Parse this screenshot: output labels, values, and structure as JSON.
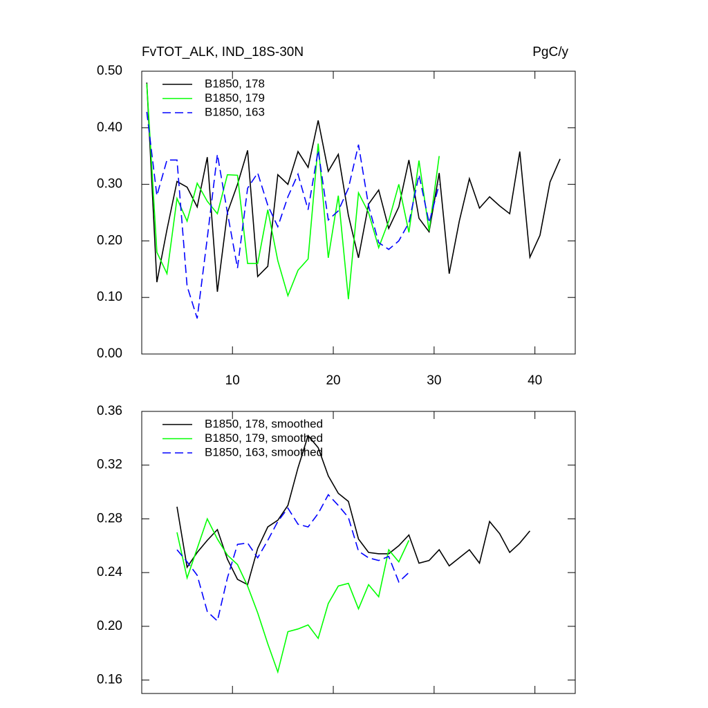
{
  "chart_data": [
    {
      "type": "line",
      "title": "FvTOT_ALK, IND_18S-30N",
      "subtitle": "PgC/y",
      "x": [
        1.5,
        2.5,
        3.5,
        4.5,
        5.5,
        6.5,
        7.5,
        8.5,
        9.5,
        10.5,
        11.5,
        12.5,
        13.5,
        14.5,
        15.5,
        16.5,
        17.5,
        18.5,
        19.5,
        20.5,
        21.5,
        22.5,
        23.5,
        24.5,
        25.5,
        26.5,
        27.5,
        28.5,
        29.5,
        30.5,
        31.5,
        32.5,
        33.5,
        34.5,
        35.5,
        36.5,
        37.5,
        38.5,
        39.5,
        40.5,
        41.5,
        42.5
      ],
      "series": [
        {
          "name": "B1850, 178",
          "color": "#000000",
          "dash": false,
          "values": [
            0.48,
            0.127,
            0.22,
            0.305,
            0.295,
            0.26,
            0.348,
            0.11,
            0.25,
            0.3,
            0.36,
            0.137,
            0.155,
            0.317,
            0.3,
            0.358,
            0.33,
            0.413,
            0.323,
            0.353,
            0.245,
            0.17,
            0.265,
            0.29,
            0.222,
            0.26,
            0.343,
            0.24,
            0.216,
            0.32,
            0.142,
            0.235,
            0.31,
            0.258,
            0.278,
            0.262,
            0.248,
            0.358,
            0.171,
            0.21,
            0.304,
            0.345
          ]
        },
        {
          "name": "B1850, 179",
          "color": "#00ff00",
          "dash": false,
          "values": [
            0.478,
            0.18,
            0.142,
            0.275,
            0.235,
            0.302,
            0.27,
            0.248,
            0.317,
            0.316,
            0.16,
            0.16,
            0.255,
            0.165,
            0.103,
            0.148,
            0.168,
            0.372,
            0.17,
            0.28,
            0.097,
            0.285,
            0.25,
            0.188,
            0.235,
            0.3,
            0.215,
            0.342,
            0.218,
            0.35,
            null,
            null,
            null,
            null,
            null,
            null,
            null,
            null,
            null,
            null,
            null,
            null
          ]
        },
        {
          "name": "B1850, 163",
          "color": "#0000ff",
          "dash": true,
          "values": [
            0.428,
            0.28,
            0.343,
            0.343,
            0.12,
            0.063,
            0.205,
            0.353,
            0.25,
            0.152,
            0.293,
            0.32,
            0.263,
            0.225,
            0.278,
            0.318,
            0.255,
            0.36,
            0.237,
            0.253,
            0.293,
            0.37,
            0.262,
            0.197,
            0.185,
            0.2,
            0.232,
            0.317,
            0.232,
            0.3,
            null,
            null,
            null,
            null,
            null,
            null,
            null,
            null,
            null,
            null,
            null,
            null
          ]
        }
      ],
      "xlim": [
        1,
        44
      ],
      "xticks": [
        10,
        20,
        30,
        40
      ],
      "show_xtick_labels": true,
      "ylim": [
        0,
        0.5
      ],
      "yticks": [
        {
          "value": 0,
          "label": "0.00"
        },
        {
          "value": 0.1,
          "label": "0.10"
        },
        {
          "value": 0.2,
          "label": "0.20"
        },
        {
          "value": 0.3,
          "label": "0.30"
        },
        {
          "value": 0.4,
          "label": "0.40"
        },
        {
          "value": 0.5,
          "label": "0.50"
        }
      ],
      "legend": "top-left"
    },
    {
      "type": "line",
      "x": [
        4.5,
        5.5,
        6.5,
        7.5,
        8.5,
        9.5,
        10.5,
        11.5,
        12.5,
        13.5,
        14.5,
        15.5,
        16.5,
        17.5,
        18.5,
        19.5,
        20.5,
        21.5,
        22.5,
        23.5,
        24.5,
        25.5,
        26.5,
        27.5,
        28.5,
        29.5,
        30.5,
        31.5,
        32.5,
        33.5,
        34.5,
        35.5,
        36.5,
        37.5,
        38.5,
        39.5
      ],
      "series": [
        {
          "name": "B1850, 178, smoothed",
          "color": "#000000",
          "dash": false,
          "values": [
            0.289,
            0.244,
            0.255,
            0.264,
            0.272,
            0.25,
            0.235,
            0.231,
            0.258,
            0.274,
            0.279,
            0.29,
            0.318,
            0.342,
            0.333,
            0.312,
            0.299,
            0.293,
            0.265,
            0.255,
            0.254,
            0.254,
            0.26,
            0.268,
            0.247,
            0.249,
            0.257,
            0.245,
            0.251,
            0.257,
            0.247,
            0.278,
            0.269,
            0.255,
            0.262,
            0.271
          ]
        },
        {
          "name": "B1850, 179, smoothed",
          "color": "#00ff00",
          "dash": false,
          "values": [
            0.27,
            0.236,
            0.258,
            0.28,
            0.265,
            0.253,
            0.246,
            0.23,
            0.21,
            0.187,
            0.166,
            0.196,
            0.198,
            0.201,
            0.191,
            0.217,
            0.23,
            0.232,
            0.213,
            0.231,
            0.222,
            0.257,
            0.248,
            0.264,
            null,
            null,
            null,
            null,
            null,
            null,
            null,
            null,
            null,
            null,
            null,
            null
          ]
        },
        {
          "name": "B1850, 163, smoothed",
          "color": "#0000ff",
          "dash": true,
          "values": [
            0.257,
            0.248,
            0.238,
            0.211,
            0.204,
            0.236,
            0.261,
            0.262,
            0.251,
            0.264,
            0.278,
            0.288,
            0.276,
            0.274,
            0.284,
            0.298,
            0.29,
            0.281,
            0.256,
            0.251,
            0.249,
            0.252,
            0.233,
            0.24,
            null,
            null,
            null,
            null,
            null,
            null,
            null,
            null,
            null,
            null,
            null,
            null
          ]
        }
      ],
      "xlim": [
        1,
        44
      ],
      "xticks": [
        10,
        20,
        30,
        40
      ],
      "show_xtick_labels": false,
      "ylim": [
        0.15,
        0.36
      ],
      "yticks": [
        {
          "value": 0.16,
          "label": "0.16"
        },
        {
          "value": 0.2,
          "label": "0.20"
        },
        {
          "value": 0.24,
          "label": "0.24"
        },
        {
          "value": 0.28,
          "label": "0.28"
        },
        {
          "value": 0.32,
          "label": "0.32"
        },
        {
          "value": 0.36,
          "label": "0.36"
        }
      ],
      "legend": "top-left"
    }
  ]
}
